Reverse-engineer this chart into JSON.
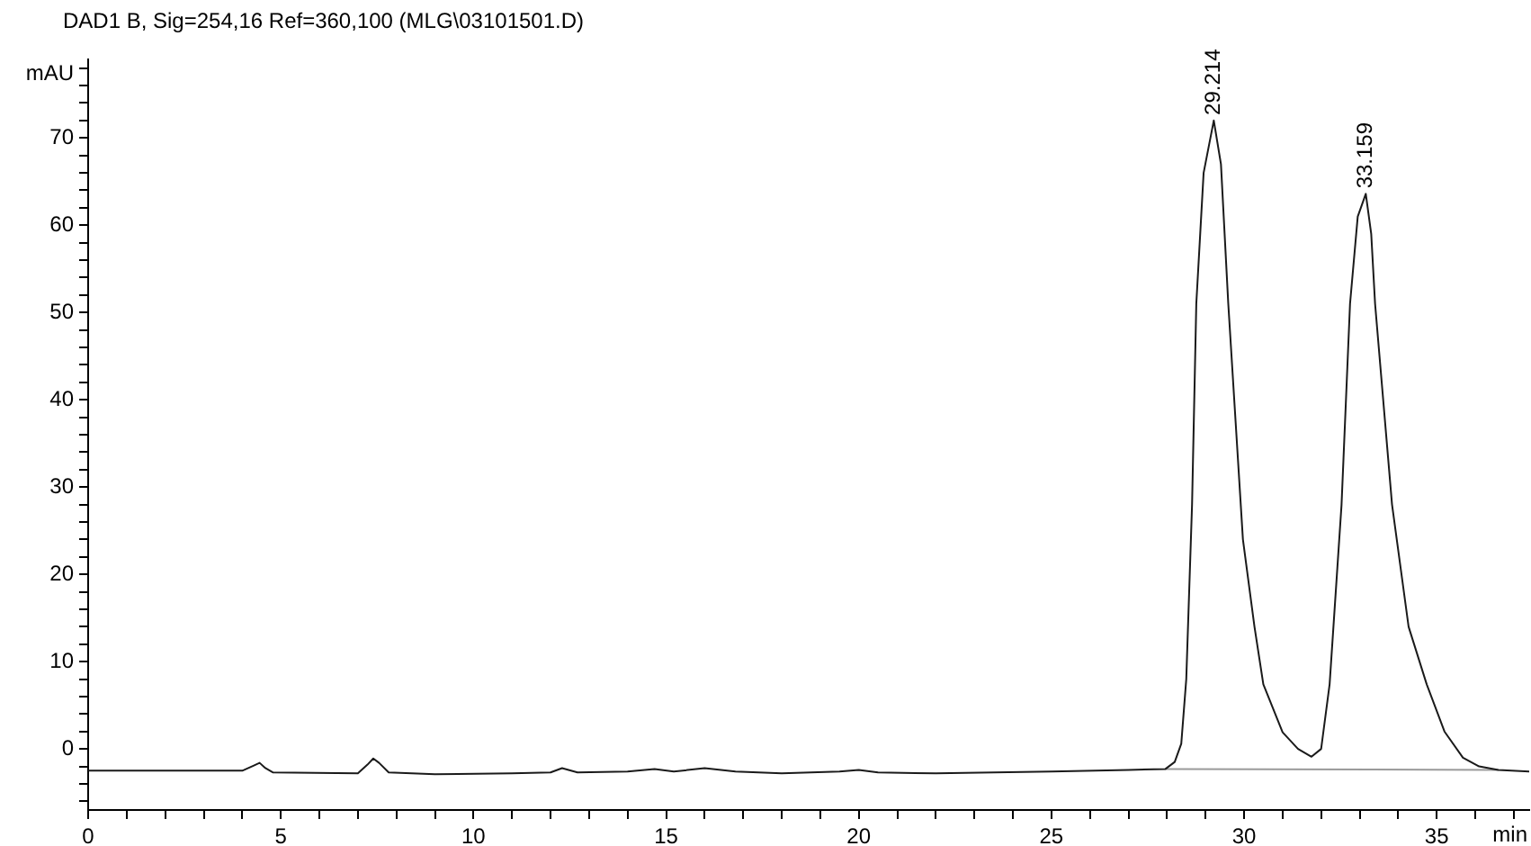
{
  "chart_data": {
    "type": "line",
    "title": "DAD1 B, Sig=254,16 Ref=360,100 (MLG\\03101501.D)",
    "xlabel": "min",
    "ylabel": "mAU",
    "xlim": [
      0,
      37.4
    ],
    "ylim": [
      -7,
      79
    ],
    "xticks": [
      0,
      {
        "value": 1,
        "label": null
      },
      {
        "value": 2,
        "label": null
      },
      {
        "value": 3,
        "label": null
      },
      {
        "value": 4,
        "label": null
      },
      5,
      {
        "value": 6,
        "label": null
      },
      {
        "value": 7,
        "label": null
      },
      {
        "value": 8,
        "label": null
      },
      {
        "value": 9,
        "label": null
      },
      10,
      {
        "value": 11,
        "label": null
      },
      {
        "value": 12,
        "label": null
      },
      {
        "value": 13,
        "label": null
      },
      {
        "value": 14,
        "label": null
      },
      15,
      {
        "value": 16,
        "label": null
      },
      {
        "value": 17,
        "label": null
      },
      {
        "value": 18,
        "label": null
      },
      {
        "value": 19,
        "label": null
      },
      20,
      {
        "value": 21,
        "label": null
      },
      {
        "value": 22,
        "label": null
      },
      {
        "value": 23,
        "label": null
      },
      {
        "value": 24,
        "label": null
      },
      25,
      {
        "value": 26,
        "label": null
      },
      {
        "value": 27,
        "label": null
      },
      {
        "value": 28,
        "label": null
      },
      {
        "value": 29,
        "label": null
      },
      30,
      {
        "value": 31,
        "label": null
      },
      {
        "value": 32,
        "label": null
      },
      {
        "value": 33,
        "label": null
      },
      {
        "value": 34,
        "label": null
      },
      35,
      {
        "value": 36,
        "label": null
      },
      {
        "value": 37,
        "label": null
      }
    ],
    "yticks": [
      {
        "value": -6,
        "label": null
      },
      {
        "value": -4,
        "label": null
      },
      {
        "value": -2,
        "label": null
      },
      0,
      {
        "value": 2,
        "label": null
      },
      {
        "value": 4,
        "label": null
      },
      {
        "value": 6,
        "label": null
      },
      {
        "value": 8,
        "label": null
      },
      10,
      {
        "value": 12,
        "label": null
      },
      {
        "value": 14,
        "label": null
      },
      {
        "value": 16,
        "label": null
      },
      {
        "value": 18,
        "label": null
      },
      20,
      {
        "value": 22,
        "label": null
      },
      {
        "value": 24,
        "label": null
      },
      {
        "value": 26,
        "label": null
      },
      {
        "value": 28,
        "label": null
      },
      30,
      {
        "value": 32,
        "label": null
      },
      {
        "value": 34,
        "label": null
      },
      {
        "value": 36,
        "label": null
      },
      {
        "value": 38,
        "label": null
      },
      40,
      {
        "value": 42,
        "label": null
      },
      {
        "value": 44,
        "label": null
      },
      {
        "value": 46,
        "label": null
      },
      {
        "value": 48,
        "label": null
      },
      50,
      {
        "value": 52,
        "label": null
      },
      {
        "value": 54,
        "label": null
      },
      {
        "value": 56,
        "label": null
      },
      {
        "value": 58,
        "label": null
      },
      60,
      {
        "value": 62,
        "label": null
      },
      {
        "value": 64,
        "label": null
      },
      {
        "value": 66,
        "label": null
      },
      {
        "value": 68,
        "label": null
      },
      70,
      {
        "value": 72,
        "label": null
      },
      {
        "value": 74,
        "label": null
      },
      {
        "value": 76,
        "label": null
      },
      {
        "value": 78,
        "label": null
      }
    ],
    "grid": false,
    "marker": "none",
    "line_style": "solid",
    "series": [
      {
        "color": "#1a1a1a",
        "x": [
          0,
          2,
          4.0,
          4.3,
          4.45,
          4.6,
          4.8,
          7.0,
          7.25,
          7.4,
          7.55,
          7.8,
          9,
          11,
          12.0,
          12.3,
          12.7,
          14.0,
          14.7,
          15.2,
          16.0,
          16.8,
          18,
          19.5,
          20,
          20.5,
          22,
          25,
          27,
          27.96,
          28.2,
          28.37,
          28.5,
          28.65,
          28.76,
          28.95,
          29.214,
          29.4,
          29.59,
          29.97,
          30.27,
          30.5,
          31.0,
          31.4,
          31.75,
          32.0,
          32.22,
          32.53,
          32.75,
          32.95,
          33.159,
          33.3,
          33.4,
          33.84,
          34.27,
          34.74,
          35.2,
          35.68,
          36.1,
          36.6,
          37.4
        ],
        "values": [
          -2.5,
          -2.5,
          -2.5,
          -1.9,
          -1.6,
          -2.2,
          -2.7,
          -2.8,
          -1.8,
          -1.1,
          -1.6,
          -2.7,
          -2.9,
          -2.8,
          -2.7,
          -2.2,
          -2.7,
          -2.6,
          -2.3,
          -2.6,
          -2.2,
          -2.6,
          -2.8,
          -2.6,
          -2.4,
          -2.7,
          -2.8,
          -2.6,
          -2.4,
          -2.3,
          -1.5,
          0.6,
          8,
          28,
          51,
          66,
          72,
          67,
          51,
          24,
          14,
          7.4,
          1.9,
          0,
          -0.9,
          0,
          7.4,
          28,
          51,
          61,
          63.6,
          59,
          51,
          28,
          14,
          7.4,
          2,
          -1,
          -2,
          -2.4,
          -2.6
        ]
      },
      {
        "color": "#9a9a9a",
        "x": [
          27.96,
          36.6
        ],
        "values": [
          -2.3,
          -2.4
        ]
      }
    ],
    "annotations": [
      {
        "text": "29.214",
        "x": 29.214,
        "y": 72
      },
      {
        "text": "33.159",
        "x": 33.159,
        "y": 63.6
      }
    ]
  }
}
